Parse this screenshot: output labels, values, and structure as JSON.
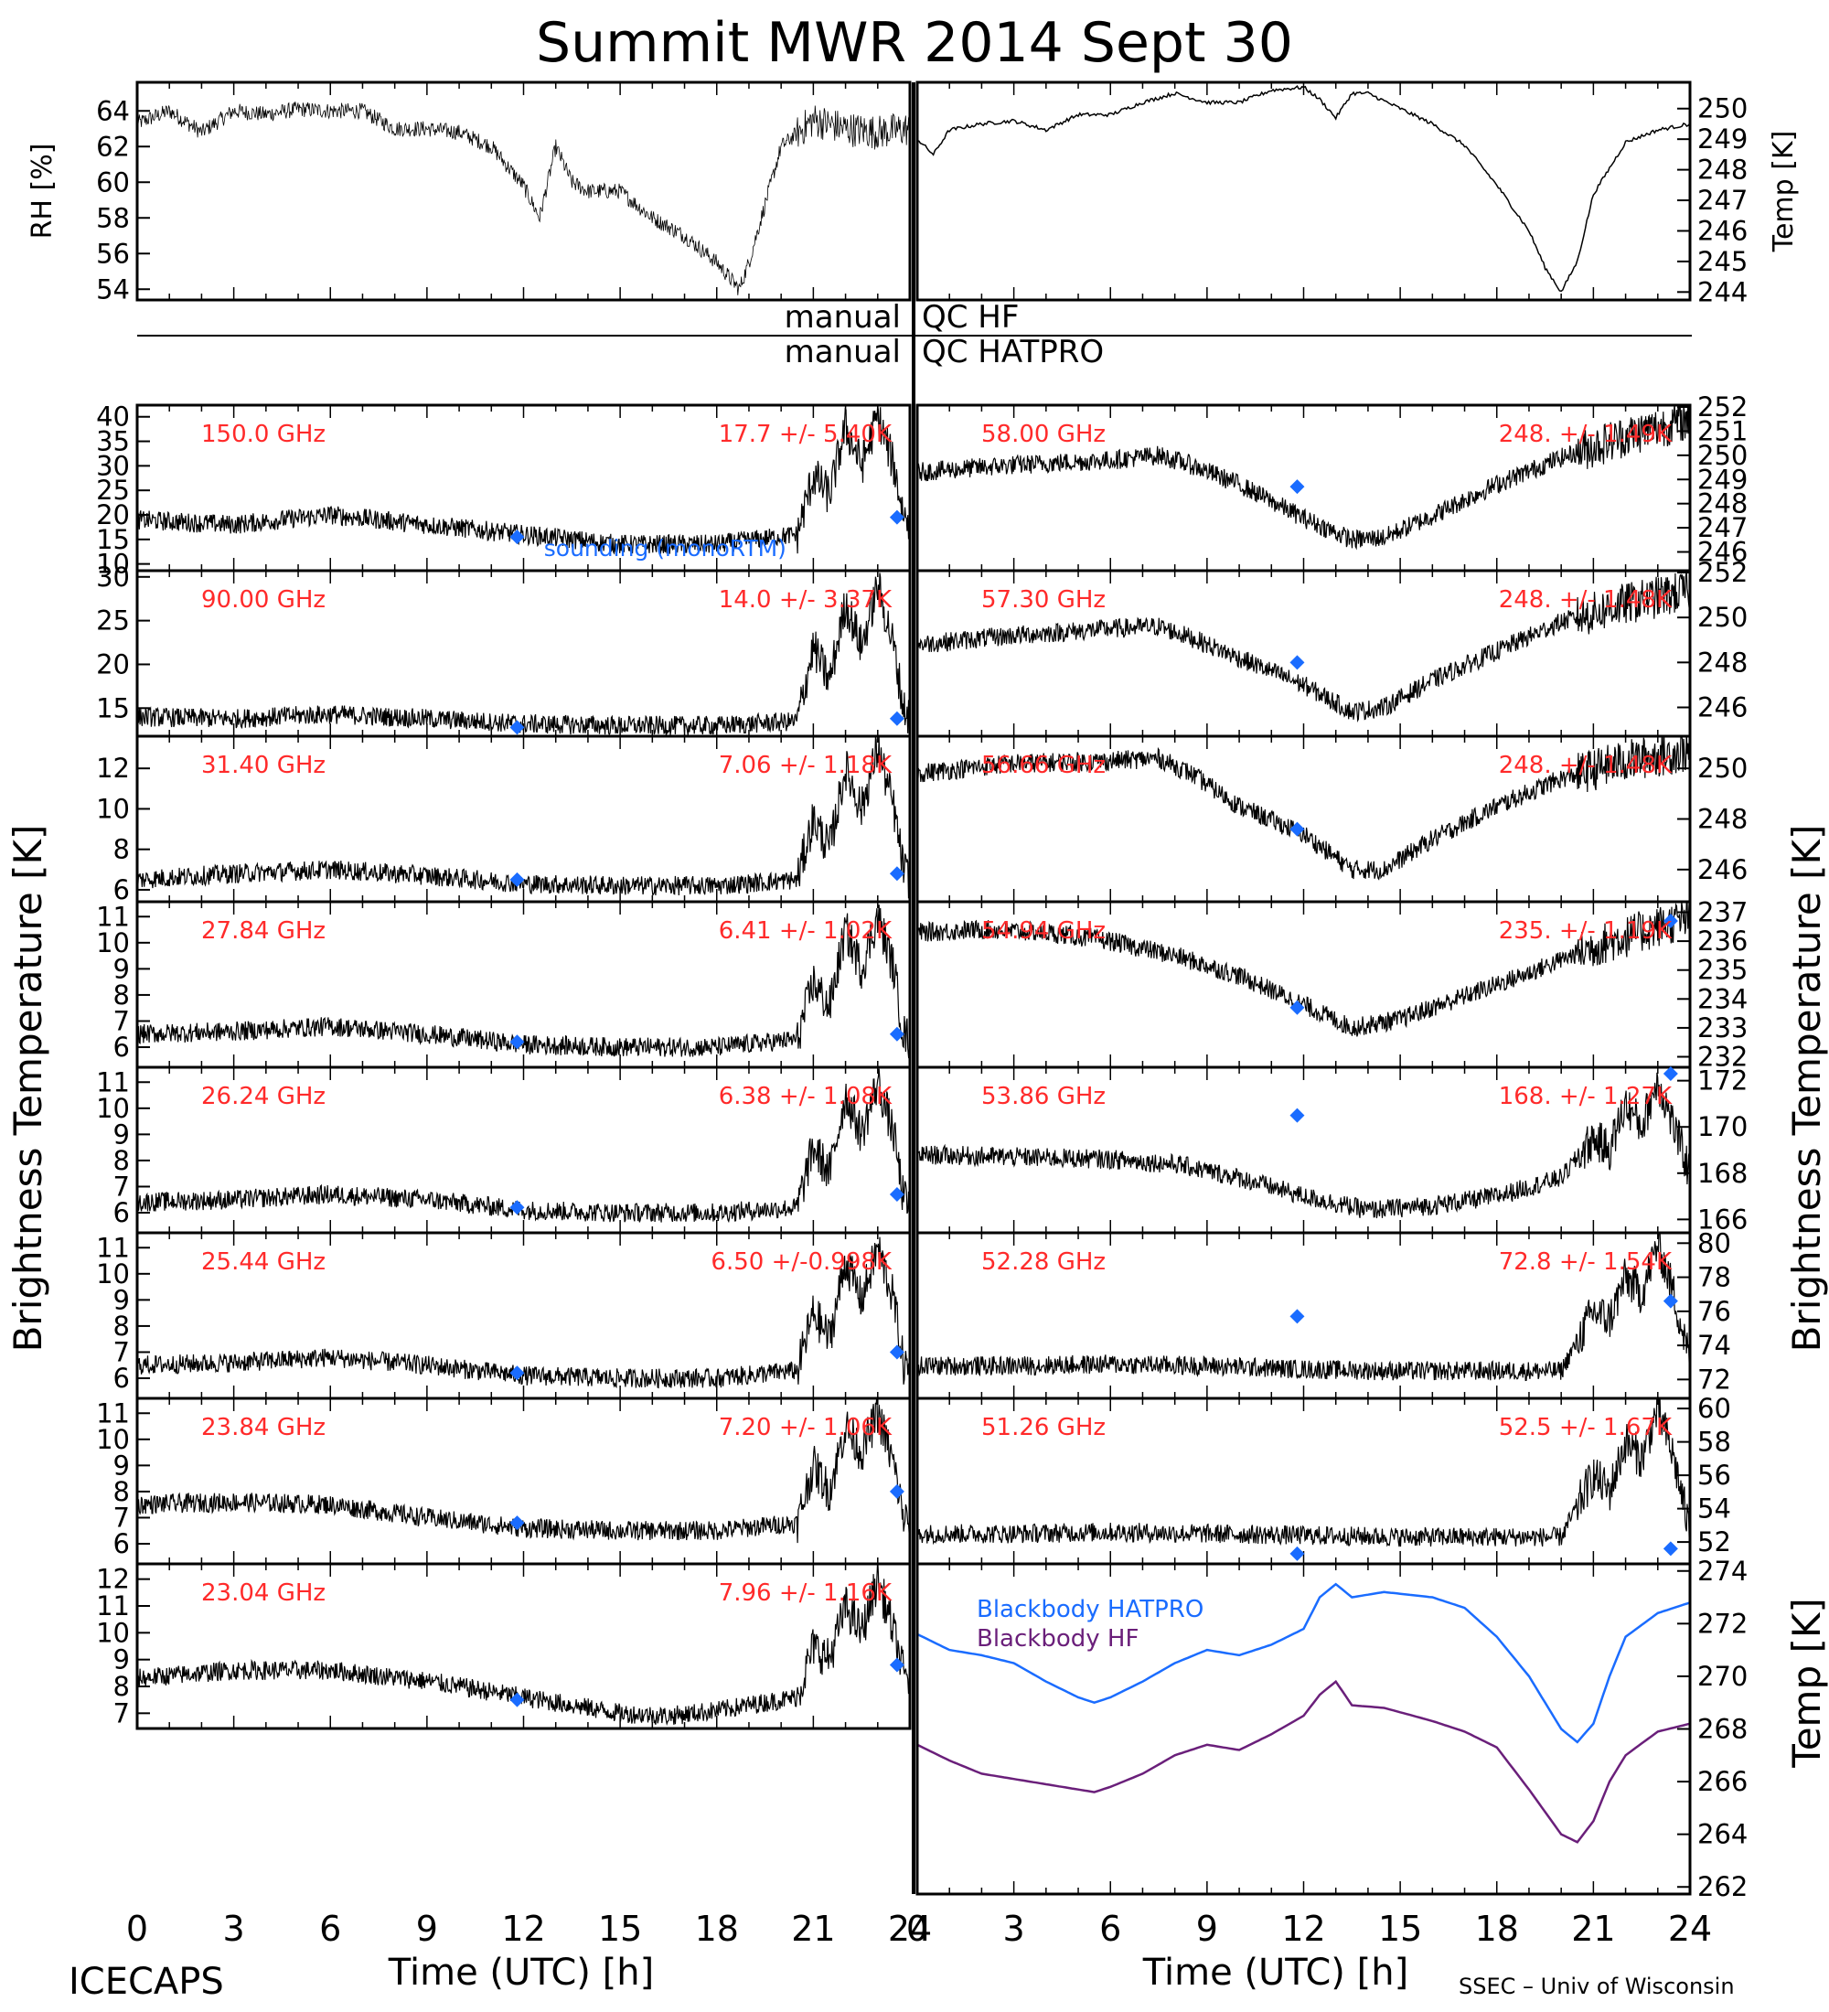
{
  "page": {
    "title": "Summit MWR 2014 Sept 30",
    "footer_left": "ICECAPS",
    "footer_right": "SSEC – Univ of Wisconsin",
    "qc_left_1": "manual",
    "qc_right_1": "QC HF",
    "qc_left_2": "manual",
    "qc_right_2": "QC HATPRO",
    "left_big_label": "Brightness Temperature [K]",
    "right_big_label": "Brightness Temperature [K]",
    "bottom_right_label": "Temp [K]",
    "xlabel": "Time (UTC) [h]",
    "xticks": [
      "0",
      "3",
      "6",
      "9",
      "12",
      "15",
      "18",
      "21",
      "24"
    ],
    "colors": {
      "red": "#ff2a2a",
      "blue": "#1a6cff",
      "purple": "#6a1f7a",
      "black": "#000000"
    }
  },
  "chart_data": [
    {
      "id": "rh",
      "type": "scatter",
      "ylabel": "RH [%]",
      "ylim": [
        53.5,
        65.5
      ],
      "yticks": [
        "54",
        "56",
        "58",
        "60",
        "62",
        "64"
      ],
      "x": [
        0,
        1,
        2,
        3,
        4,
        5,
        6,
        7,
        8,
        9,
        10,
        11,
        12,
        12.5,
        13,
        13.5,
        14,
        15,
        16,
        17,
        18,
        18.7,
        19,
        20,
        21,
        22,
        23,
        24
      ],
      "y": [
        63.3,
        64.0,
        62.8,
        64.0,
        63.8,
        64.1,
        64.0,
        64.0,
        63.0,
        63.0,
        62.8,
        62.0,
        59.8,
        58.0,
        62.0,
        60.0,
        59.5,
        59.5,
        58.0,
        57.0,
        55.5,
        54.0,
        55.5,
        62.0,
        63.5,
        63.0,
        62.8,
        63.0
      ]
    },
    {
      "id": "temp",
      "type": "line",
      "ylabel": "Temp [K]",
      "ylim": [
        243.8,
        250.8
      ],
      "yticks": [
        "244",
        "245",
        "246",
        "247",
        "248",
        "249",
        "250"
      ],
      "x": [
        0,
        0.5,
        1,
        2,
        3,
        4,
        5,
        6,
        7,
        8,
        9,
        10,
        11,
        12,
        12.5,
        13,
        13.5,
        14,
        15,
        16,
        17,
        18,
        19,
        19.5,
        20,
        20.5,
        21,
        22,
        23,
        24
      ],
      "y": [
        249.0,
        248.5,
        249.3,
        249.5,
        249.6,
        249.3,
        249.8,
        249.8,
        250.2,
        250.5,
        250.2,
        250.2,
        250.6,
        250.7,
        250.3,
        249.7,
        250.5,
        250.5,
        250.0,
        249.5,
        248.8,
        247.5,
        246.0,
        244.8,
        244.0,
        245.0,
        247.2,
        248.9,
        249.3,
        249.5
      ]
    },
    {
      "id": "f150",
      "type": "scatter",
      "freq": "150.0 GHz",
      "stat": "17.7 +/-  5.40K",
      "ylim": [
        9,
        42
      ],
      "yticks": [
        "10",
        "15",
        "20",
        "25",
        "30",
        "35",
        "40"
      ],
      "note": "sounding (monoRTM)",
      "x": [
        0,
        3,
        6,
        9,
        12,
        15,
        18,
        20.5,
        21,
        21.5,
        22,
        22.5,
        23,
        23.5,
        23.8,
        24
      ],
      "y": [
        19,
        18,
        20,
        18,
        16,
        14,
        14,
        16,
        28,
        24,
        38,
        30,
        40,
        30,
        20,
        19
      ],
      "marker": [
        [
          11.8,
          15.5
        ],
        [
          23.6,
          19.5
        ]
      ]
    },
    {
      "id": "f58",
      "type": "scatter",
      "freq": "58.00 GHz",
      "stat": "248. +/-  1.49K",
      "ylim": [
        245.3,
        252
      ],
      "yticks": [
        "246",
        "247",
        "248",
        "249",
        "250",
        "251",
        "252"
      ],
      "x": [
        0,
        3,
        6,
        7.5,
        8.5,
        10,
        12,
        13.5,
        14.5,
        16,
        18,
        20,
        22,
        24
      ],
      "y": [
        249.3,
        249.6,
        249.8,
        250,
        249.6,
        248.8,
        247.4,
        246.5,
        246.6,
        247.5,
        248.8,
        249.9,
        250.8,
        251.5
      ],
      "marker": [
        [
          11.8,
          248.7
        ]
      ]
    },
    {
      "id": "f90",
      "type": "scatter",
      "freq": "90.00 GHz",
      "stat": "14.0 +/-  3.37K",
      "ylim": [
        12,
        30.5
      ],
      "yticks": [
        "15",
        "20",
        "25",
        "30"
      ],
      "x": [
        0,
        3,
        6,
        9,
        12,
        15,
        18,
        20.5,
        21,
        21.5,
        22,
        22.5,
        23,
        23.5,
        23.8,
        24
      ],
      "y": [
        14,
        13.8,
        14.3,
        13.8,
        13.2,
        13,
        13,
        13.5,
        22,
        18,
        27,
        22,
        29,
        22,
        15,
        14
      ],
      "marker": [
        [
          11.8,
          12.8
        ],
        [
          23.6,
          13.8
        ]
      ]
    },
    {
      "id": "f573",
      "type": "scatter",
      "freq": "57.30 GHz",
      "stat": "248. +/-  1.48K",
      "ylim": [
        244.8,
        252
      ],
      "yticks": [
        "246",
        "248",
        "250",
        "252"
      ],
      "x": [
        0,
        3,
        6,
        7.5,
        8.5,
        10,
        12,
        13.5,
        14.5,
        16,
        18,
        20,
        22,
        24
      ],
      "y": [
        248.8,
        249.2,
        249.5,
        249.6,
        249.1,
        248.2,
        247.0,
        245.8,
        246.0,
        247.2,
        248.5,
        249.8,
        250.6,
        251.2
      ],
      "marker": [
        [
          11.8,
          248.0
        ]
      ]
    },
    {
      "id": "f314",
      "type": "scatter",
      "freq": "31.40 GHz",
      "stat": "7.06 +/- 1.18K",
      "ylim": [
        5.5,
        13.5
      ],
      "yticks": [
        "6",
        "8",
        "10",
        "12"
      ],
      "x": [
        0,
        3,
        6,
        9,
        12,
        15,
        18,
        20.5,
        21,
        21.5,
        22,
        22.5,
        23,
        23.5,
        23.8,
        24
      ],
      "y": [
        6.5,
        6.8,
        7,
        6.7,
        6.3,
        6.2,
        6.2,
        6.5,
        9.5,
        8,
        12,
        10,
        13,
        10,
        7,
        6.5
      ],
      "marker": [
        [
          11.8,
          6.5
        ],
        [
          23.6,
          6.8
        ]
      ]
    },
    {
      "id": "f5666",
      "type": "scatter",
      "freq": "56.66 GHz",
      "stat": "248. +/-  1.48K",
      "ylim": [
        244.8,
        251.2
      ],
      "yticks": [
        "246",
        "248",
        "250"
      ],
      "x": [
        0,
        3,
        6,
        7.5,
        8.5,
        10,
        12,
        13.5,
        14.5,
        16,
        18,
        20,
        22,
        24
      ],
      "y": [
        249.8,
        250.2,
        250.3,
        250.4,
        249.8,
        248.5,
        247.4,
        246.0,
        246.0,
        247.2,
        248.5,
        249.6,
        250.3,
        250.7
      ],
      "marker": [
        [
          11.8,
          247.6
        ]
      ]
    },
    {
      "id": "f2784",
      "type": "scatter",
      "freq": "27.84 GHz",
      "stat": "6.41 +/- 1.02K",
      "ylim": [
        5.3,
        11.5
      ],
      "yticks": [
        "6",
        "7",
        "8",
        "9",
        "10",
        "11"
      ],
      "x": [
        0,
        3,
        6,
        9,
        12,
        15,
        18,
        20.5,
        21,
        21.5,
        22,
        22.5,
        23,
        23.5,
        23.8,
        24
      ],
      "y": [
        6.5,
        6.6,
        6.8,
        6.5,
        6.1,
        6.0,
        6.0,
        6.3,
        8.5,
        7.5,
        10.5,
        9,
        11,
        9,
        6.5,
        6.3
      ],
      "marker": [
        [
          11.8,
          6.2
        ],
        [
          23.6,
          6.5
        ]
      ]
    },
    {
      "id": "f5494",
      "type": "scatter",
      "freq": "54.94 GHz",
      "stat": "235. +/-  1.19K",
      "ylim": [
        231.7,
        237.3
      ],
      "yticks": [
        "232",
        "233",
        "234",
        "235",
        "236",
        "237"
      ],
      "x": [
        0,
        2,
        4,
        6,
        8,
        10,
        12,
        13.5,
        15,
        17,
        19,
        21,
        23,
        24
      ],
      "y": [
        236.3,
        236.4,
        236.3,
        236.0,
        235.5,
        234.8,
        233.8,
        233.0,
        233.3,
        234.1,
        234.9,
        235.8,
        236.5,
        236.8
      ],
      "marker": [
        [
          11.8,
          233.7
        ],
        [
          23.4,
          236.7
        ]
      ]
    },
    {
      "id": "f2624",
      "type": "scatter",
      "freq": "26.24 GHz",
      "stat": "6.38 +/- 1.08K",
      "ylim": [
        5.3,
        11.5
      ],
      "yticks": [
        "6",
        "7",
        "8",
        "9",
        "10",
        "11"
      ],
      "x": [
        0,
        3,
        6,
        9,
        12,
        15,
        18,
        20.5,
        21,
        21.5,
        22,
        22.5,
        23,
        23.5,
        23.8,
        24
      ],
      "y": [
        6.4,
        6.5,
        6.7,
        6.5,
        6.1,
        6.0,
        6.0,
        6.2,
        8.5,
        7.5,
        10.5,
        9,
        11,
        9,
        6.5,
        6.3
      ],
      "marker": [
        [
          11.8,
          6.2
        ],
        [
          23.6,
          6.7
        ]
      ]
    },
    {
      "id": "f5386",
      "type": "scatter",
      "freq": "53.86 GHz",
      "stat": "168. +/-  1.27K",
      "ylim": [
        165.5,
        172.5
      ],
      "yticks": [
        "166",
        "168",
        "170",
        "172"
      ],
      "x": [
        0,
        3,
        6,
        8,
        10,
        12,
        14,
        16,
        18,
        20,
        21,
        21.5,
        22,
        22.5,
        23,
        23.5,
        24
      ],
      "y": [
        168.8,
        168.7,
        168.6,
        168.4,
        167.8,
        167,
        166.4,
        166.6,
        167,
        167.8,
        169.5,
        169,
        171,
        170,
        172,
        170,
        168
      ],
      "marker": [
        [
          11.8,
          170.5
        ],
        [
          23.4,
          172.3
        ]
      ]
    },
    {
      "id": "f2544",
      "type": "scatter",
      "freq": "25.44 GHz",
      "stat": "6.50 +/-0.998K",
      "ylim": [
        5.3,
        11.5
      ],
      "yticks": [
        "6",
        "7",
        "8",
        "9",
        "10",
        "11"
      ],
      "x": [
        0,
        3,
        6,
        9,
        12,
        15,
        18,
        20.5,
        21,
        21.5,
        22,
        22.5,
        23,
        23.5,
        23.8,
        24
      ],
      "y": [
        6.5,
        6.6,
        6.8,
        6.5,
        6.1,
        6.0,
        6.0,
        6.3,
        8.5,
        7.5,
        10.5,
        9,
        11,
        9,
        6.5,
        6.3
      ],
      "marker": [
        [
          11.8,
          6.2
        ],
        [
          23.6,
          7
        ]
      ]
    },
    {
      "id": "f5228",
      "type": "scatter",
      "freq": "52.28 GHz",
      "stat": "72.8 +/-  1.54K",
      "ylim": [
        71,
        80.5
      ],
      "yticks": [
        "72",
        "74",
        "76",
        "78",
        "80"
      ],
      "x": [
        0,
        3,
        6,
        9,
        12,
        15,
        18,
        20,
        21,
        21.5,
        22,
        22.5,
        23,
        23.5,
        24
      ],
      "y": [
        72.8,
        72.8,
        72.9,
        72.8,
        72.6,
        72.5,
        72.5,
        72.5,
        76,
        75.5,
        78,
        77,
        80,
        77,
        73
      ],
      "marker": [
        [
          11.8,
          75.7
        ],
        [
          23.4,
          76.6
        ]
      ]
    },
    {
      "id": "f2384",
      "type": "scatter",
      "freq": "23.84 GHz",
      "stat": "7.20 +/- 1.06K",
      "ylim": [
        5.3,
        11.5
      ],
      "yticks": [
        "6",
        "7",
        "8",
        "9",
        "10",
        "11"
      ],
      "x": [
        0,
        3,
        6,
        9,
        12,
        15,
        18,
        20.5,
        21,
        21.5,
        22,
        22.5,
        23,
        23.5,
        23.8,
        24
      ],
      "y": [
        7.5,
        7.6,
        7.5,
        7.0,
        6.6,
        6.5,
        6.5,
        6.8,
        9,
        8,
        10.5,
        9.5,
        11,
        9,
        7,
        6.8
      ],
      "marker": [
        [
          11.8,
          6.8
        ],
        [
          23.6,
          8
        ]
      ]
    },
    {
      "id": "f5126",
      "type": "scatter",
      "freq": "51.26 GHz",
      "stat": "52.5 +/-  1.67K",
      "ylim": [
        50.8,
        60.5
      ],
      "yticks": [
        "52",
        "54",
        "56",
        "58",
        "60"
      ],
      "x": [
        0,
        3,
        6,
        9,
        12,
        15,
        18,
        20,
        21,
        21.5,
        22,
        22.5,
        23,
        23.5,
        24
      ],
      "y": [
        52.5,
        52.5,
        52.6,
        52.5,
        52.4,
        52.3,
        52.3,
        52.3,
        56,
        55,
        58,
        57,
        60,
        57,
        52.5
      ],
      "marker": [
        [
          11.8,
          51.3
        ],
        [
          23.4,
          51.6
        ]
      ]
    },
    {
      "id": "f2304",
      "type": "scatter",
      "freq": "23.04 GHz",
      "stat": "7.96 +/- 1.16K",
      "ylim": [
        6.5,
        12.5
      ],
      "yticks": [
        "7",
        "8",
        "9",
        "10",
        "11",
        "12"
      ],
      "x": [
        0,
        3,
        6,
        9,
        12,
        15,
        16.5,
        18,
        20.5,
        21,
        21.5,
        22,
        22.5,
        23,
        23.5,
        23.8,
        24
      ],
      "y": [
        8.3,
        8.6,
        8.6,
        8.2,
        7.6,
        7.0,
        6.9,
        7.1,
        7.6,
        9.5,
        9,
        11,
        10,
        12,
        10,
        8.5,
        8.2
      ],
      "marker": [
        [
          11.8,
          7.5
        ],
        [
          23.6,
          8.8
        ]
      ]
    },
    {
      "id": "bb",
      "type": "line",
      "ylabel": "Temp [K]",
      "ylim": [
        261.8,
        274.2
      ],
      "yticks": [
        "262",
        "264",
        "266",
        "268",
        "270",
        "272",
        "274"
      ],
      "series": [
        {
          "name": "Blackbody HATPRO",
          "x": [
            0,
            1,
            2,
            3,
            4,
            5,
            5.5,
            6,
            7,
            8,
            9,
            10,
            11,
            12,
            12.5,
            13,
            13.5,
            14.5,
            16,
            17,
            18,
            19,
            20,
            20.5,
            21,
            21.5,
            22,
            23,
            24
          ],
          "y": [
            271.6,
            271.0,
            270.8,
            270.5,
            269.8,
            269.2,
            269.0,
            269.2,
            269.8,
            270.5,
            271.0,
            270.8,
            271.2,
            271.8,
            273.0,
            273.5,
            273.0,
            273.2,
            273.0,
            272.6,
            271.5,
            270.0,
            268.0,
            267.5,
            268.2,
            270.0,
            271.5,
            272.4,
            272.8
          ]
        },
        {
          "name": "Blackbody HF",
          "x": [
            0,
            1,
            2,
            3,
            4,
            5,
            5.5,
            6,
            7,
            8,
            9,
            10,
            11,
            12,
            12.5,
            13,
            13.5,
            14.5,
            16,
            17,
            18,
            19,
            20,
            20.5,
            21,
            21.5,
            22,
            23,
            24
          ],
          "y": [
            267.4,
            266.8,
            266.3,
            266.1,
            265.9,
            265.7,
            265.6,
            265.8,
            266.3,
            267.0,
            267.4,
            267.2,
            267.8,
            268.5,
            269.3,
            269.8,
            268.9,
            268.8,
            268.3,
            267.9,
            267.3,
            265.7,
            264.0,
            263.7,
            264.5,
            266.0,
            267.0,
            267.9,
            268.2
          ]
        }
      ]
    }
  ]
}
